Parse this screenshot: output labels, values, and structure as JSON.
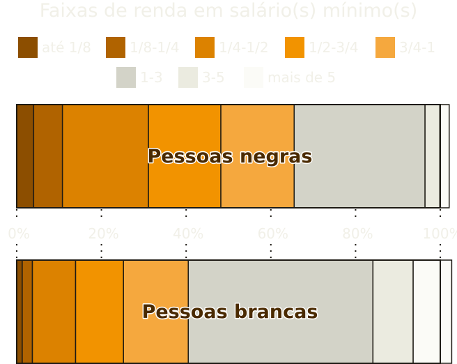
{
  "chart_data": {
    "type": "bar",
    "orientation": "horizontal-stacked-100",
    "title": "Faixas de renda em salário(s) mínimo(s)",
    "legend_placement": "top",
    "categories": [
      "até 1/8",
      "1/8-1/4",
      "1/4-1/2",
      "1/2-3/4",
      "3/4-1",
      "1-3",
      "3-5",
      "mais de 5"
    ],
    "colors": [
      "#8c4e00",
      "#b06300",
      "#dc8200",
      "#f29300",
      "#f5a83e",
      "#d3d3c8",
      "#ebebe0",
      "#fbfbf7"
    ],
    "x_ticks": [
      "0%",
      "20%",
      "40%",
      "60%",
      "80%",
      "100%"
    ],
    "xlim": [
      0,
      100
    ],
    "series": [
      {
        "name": "Pessoas negras",
        "values": [
          4.0,
          6.8,
          20.3,
          17.1,
          17.3,
          30.9,
          3.5,
          2.2
        ]
      },
      {
        "name": "Pessoas brancas",
        "values": [
          1.3,
          2.4,
          10.2,
          11.3,
          15.3,
          43.6,
          9.5,
          9.1
        ]
      }
    ]
  }
}
